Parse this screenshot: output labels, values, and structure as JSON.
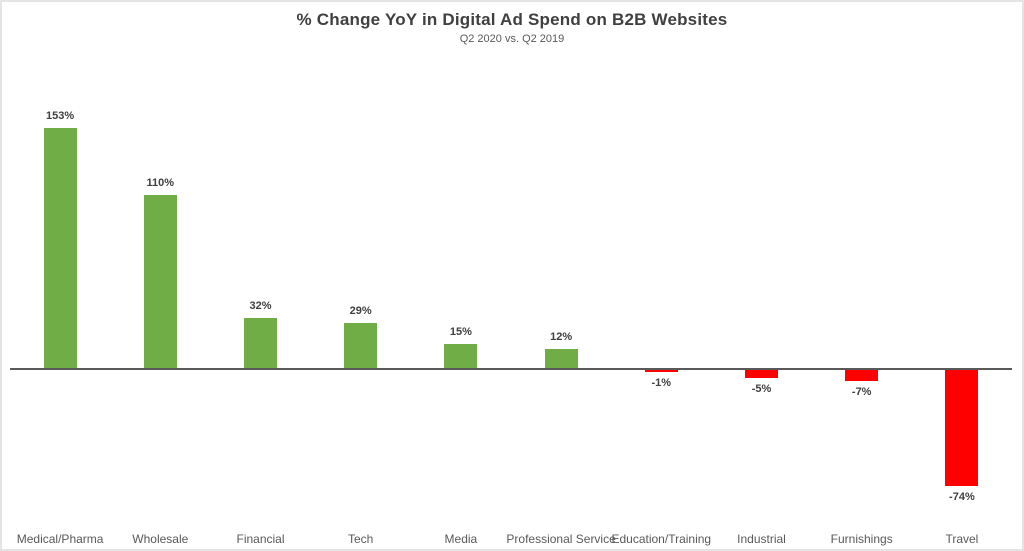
{
  "header": {
    "title": "% Change YoY in Digital Ad Spend on B2B Websites",
    "subtitle": "Q2 2020 vs. Q2 2019"
  },
  "colors": {
    "positive_bar": "#70AD47",
    "negative_bar": "#FF0000",
    "axis_line": "#595959",
    "title_text": "#404040",
    "value_label_text": "#404040",
    "category_label_text": "#595959",
    "frame_border": "#E4E4E4"
  },
  "chart_data": {
    "type": "bar",
    "title": "% Change YoY in Digital Ad Spend on B2B Websites",
    "subtitle": "Q2 2020 vs. Q2 2019",
    "categories": [
      "Medical/Pharma",
      "Wholesale",
      "Financial",
      "Tech",
      "Media",
      "Professional Service",
      "Education/Training",
      "Industrial",
      "Furnishings",
      "Travel"
    ],
    "values": [
      153,
      110,
      32,
      29,
      15,
      12,
      -1,
      -5,
      -7,
      -74
    ],
    "data_labels": [
      "153%",
      "110%",
      "32%",
      "29%",
      "15%",
      "12%",
      "-1%",
      "-5%",
      "-7%",
      "-74%"
    ],
    "xlabel": "",
    "ylabel": "",
    "ylim": [
      -100,
      160
    ],
    "grid": false,
    "legend": "none",
    "color_rule": "positive bars green, negative bars red",
    "baseline": 0
  }
}
